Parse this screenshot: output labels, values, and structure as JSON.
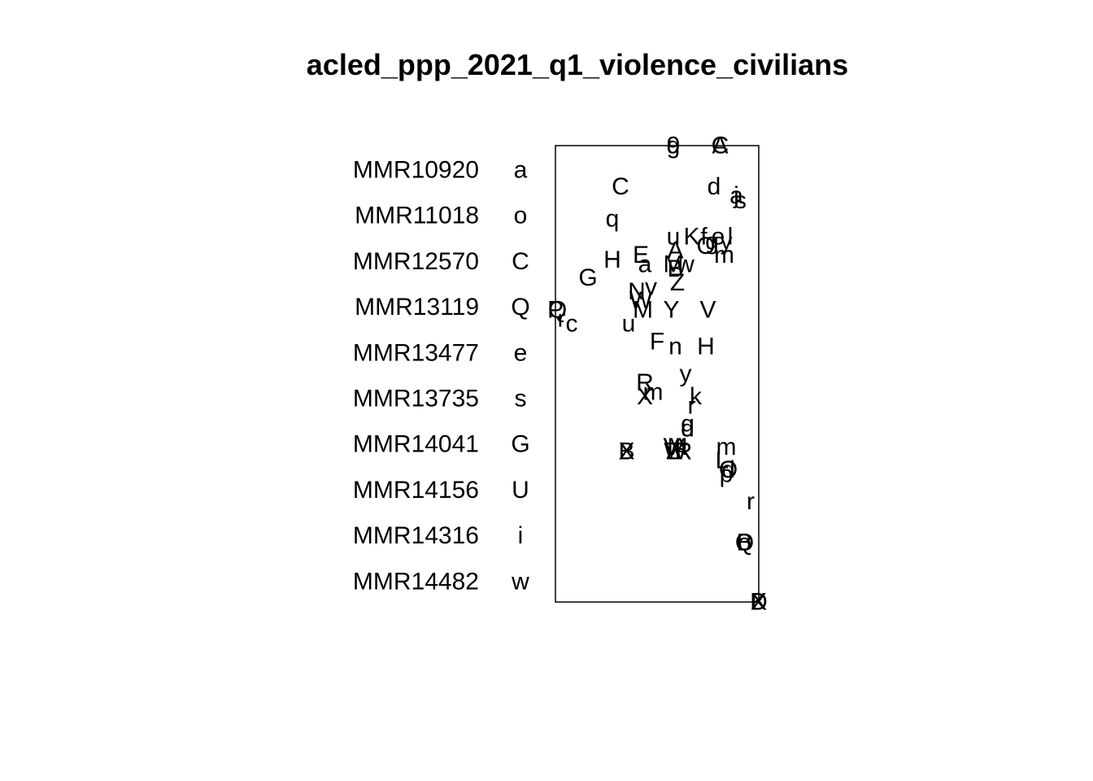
{
  "chart_data": {
    "type": "scatter",
    "title": "acled_ppp_2021_q1_violence_civilians",
    "xlabel": "",
    "ylabel": "",
    "axes_drawn": false,
    "grid": false,
    "legend_placement": "left",
    "legend": [
      {
        "code": "MMR10920",
        "symbol": "a"
      },
      {
        "code": "MMR11018",
        "symbol": "o"
      },
      {
        "code": "MMR12570",
        "symbol": "C"
      },
      {
        "code": "MMR13119",
        "symbol": "Q"
      },
      {
        "code": "MMR13477",
        "symbol": "e"
      },
      {
        "code": "MMR13735",
        "symbol": "s"
      },
      {
        "code": "MMR14041",
        "symbol": "G"
      },
      {
        "code": "MMR14156",
        "symbol": "U"
      },
      {
        "code": "MMR14316",
        "symbol": "i"
      },
      {
        "code": "MMR14482",
        "symbol": "w"
      }
    ],
    "points": [
      {
        "x": 0.58,
        "y": 1.0,
        "s": "g"
      },
      {
        "x": 0.58,
        "y": 1.0,
        "s": "9"
      },
      {
        "x": 0.81,
        "y": 1.0,
        "s": "C"
      },
      {
        "x": 0.81,
        "y": 1.0,
        "s": "A"
      },
      {
        "x": 0.32,
        "y": 0.91,
        "s": "C"
      },
      {
        "x": 0.78,
        "y": 0.91,
        "s": "d"
      },
      {
        "x": 0.89,
        "y": 0.89,
        "s": "a"
      },
      {
        "x": 0.89,
        "y": 0.89,
        "s": "j"
      },
      {
        "x": 0.91,
        "y": 0.88,
        "s": "s"
      },
      {
        "x": 0.28,
        "y": 0.84,
        "s": "q"
      },
      {
        "x": 0.58,
        "y": 0.8,
        "s": "u"
      },
      {
        "x": 0.67,
        "y": 0.8,
        "s": "K"
      },
      {
        "x": 0.73,
        "y": 0.8,
        "s": "f"
      },
      {
        "x": 0.77,
        "y": 0.79,
        "s": "g"
      },
      {
        "x": 0.8,
        "y": 0.8,
        "s": "e"
      },
      {
        "x": 0.86,
        "y": 0.8,
        "s": "l"
      },
      {
        "x": 0.74,
        "y": 0.78,
        "s": "O"
      },
      {
        "x": 0.84,
        "y": 0.79,
        "s": "y"
      },
      {
        "x": 0.83,
        "y": 0.76,
        "s": "m"
      },
      {
        "x": 0.59,
        "y": 0.77,
        "s": "A"
      },
      {
        "x": 0.28,
        "y": 0.75,
        "s": "H"
      },
      {
        "x": 0.42,
        "y": 0.76,
        "s": "E"
      },
      {
        "x": 0.44,
        "y": 0.74,
        "s": "a"
      },
      {
        "x": 0.58,
        "y": 0.74,
        "s": "M"
      },
      {
        "x": 0.59,
        "y": 0.73,
        "s": "B"
      },
      {
        "x": 0.64,
        "y": 0.74,
        "s": "w"
      },
      {
        "x": 0.6,
        "y": 0.7,
        "s": "Z"
      },
      {
        "x": 0.16,
        "y": 0.71,
        "s": "G"
      },
      {
        "x": 0.47,
        "y": 0.69,
        "s": "v"
      },
      {
        "x": 0.4,
        "y": 0.68,
        "s": "N"
      },
      {
        "x": 0.42,
        "y": 0.66,
        "s": "W"
      },
      {
        "x": 0.43,
        "y": 0.64,
        "s": "M"
      },
      {
        "x": 0.57,
        "y": 0.64,
        "s": "Y"
      },
      {
        "x": 0.75,
        "y": 0.64,
        "s": "V"
      },
      {
        "x": 0.01,
        "y": 0.64,
        "s": "Q"
      },
      {
        "x": 0.0,
        "y": 0.64,
        "s": "P"
      },
      {
        "x": 0.03,
        "y": 0.62,
        "s": "r"
      },
      {
        "x": 0.08,
        "y": 0.61,
        "s": "c"
      },
      {
        "x": 0.36,
        "y": 0.61,
        "s": "u"
      },
      {
        "x": 0.5,
        "y": 0.57,
        "s": "F"
      },
      {
        "x": 0.59,
        "y": 0.56,
        "s": "n"
      },
      {
        "x": 0.74,
        "y": 0.56,
        "s": "H"
      },
      {
        "x": 0.64,
        "y": 0.5,
        "s": "y"
      },
      {
        "x": 0.44,
        "y": 0.48,
        "s": "R"
      },
      {
        "x": 0.48,
        "y": 0.46,
        "s": "m"
      },
      {
        "x": 0.44,
        "y": 0.45,
        "s": "X"
      },
      {
        "x": 0.69,
        "y": 0.45,
        "s": "k"
      },
      {
        "x": 0.67,
        "y": 0.43,
        "s": "r"
      },
      {
        "x": 0.65,
        "y": 0.39,
        "s": "g"
      },
      {
        "x": 0.65,
        "y": 0.38,
        "s": "d"
      },
      {
        "x": 0.35,
        "y": 0.33,
        "s": "B"
      },
      {
        "x": 0.35,
        "y": 0.33,
        "s": "X"
      },
      {
        "x": 0.57,
        "y": 0.34,
        "s": "V"
      },
      {
        "x": 0.59,
        "y": 0.33,
        "s": "W"
      },
      {
        "x": 0.61,
        "y": 0.34,
        "s": "A"
      },
      {
        "x": 0.58,
        "y": 0.33,
        "s": "Z"
      },
      {
        "x": 0.6,
        "y": 0.34,
        "s": "M"
      },
      {
        "x": 0.63,
        "y": 0.33,
        "s": "R"
      },
      {
        "x": 0.84,
        "y": 0.34,
        "s": "m"
      },
      {
        "x": 0.82,
        "y": 0.31,
        "s": "L"
      },
      {
        "x": 0.85,
        "y": 0.29,
        "s": "d"
      },
      {
        "x": 0.85,
        "y": 0.29,
        "s": "O"
      },
      {
        "x": 0.84,
        "y": 0.28,
        "s": "p"
      },
      {
        "x": 0.96,
        "y": 0.22,
        "s": "r"
      },
      {
        "x": 0.93,
        "y": 0.13,
        "s": "B"
      },
      {
        "x": 0.93,
        "y": 0.13,
        "s": "Q"
      },
      {
        "x": 0.93,
        "y": 0.13,
        "s": "o"
      },
      {
        "x": 1.0,
        "y": 0.0,
        "s": "K"
      },
      {
        "x": 1.0,
        "y": 0.0,
        "s": "D"
      },
      {
        "x": 1.0,
        "y": 0.0,
        "s": "X"
      }
    ]
  }
}
